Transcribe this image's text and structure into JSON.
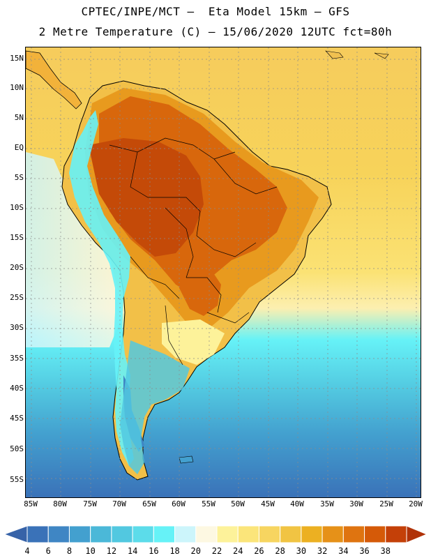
{
  "header": {
    "line1": "CPTEC/INPE/MCT –  Eta Model 15km – GFS",
    "line2": "2 Metre Temperature (C) – 15/06/2020 12UTC fct=80h"
  },
  "axes": {
    "lat_labels": [
      "15N",
      "10N",
      "5N",
      "EQ",
      "5S",
      "10S",
      "15S",
      "20S",
      "25S",
      "30S",
      "35S",
      "40S",
      "45S",
      "50S",
      "55S"
    ],
    "lon_labels": [
      "85W",
      "80W",
      "75W",
      "70W",
      "65W",
      "60W",
      "55W",
      "50W",
      "45W",
      "40W",
      "35W",
      "30W",
      "25W",
      "20W"
    ]
  },
  "colorbar": {
    "labels": [
      "4",
      "6",
      "8",
      "10",
      "12",
      "14",
      "16",
      "18",
      "20",
      "22",
      "24",
      "26",
      "28",
      "30",
      "32",
      "34",
      "36",
      "38"
    ],
    "colors": [
      "#3a72b8",
      "#3f86c4",
      "#43a0cf",
      "#4bb8d8",
      "#52c8e0",
      "#5cdcea",
      "#66f2f7",
      "#ccf5fb",
      "#fdf8e2",
      "#fdf29a",
      "#fbe57a",
      "#f7d560",
      "#f1c443",
      "#ecb022",
      "#e69118",
      "#df7410",
      "#d55a08",
      "#c44008"
    ],
    "under_color": "#3763a8",
    "over_color": "#b03208"
  },
  "map": {
    "region": "South America",
    "variable": "2 m temperature",
    "ocean_gradient": [
      {
        "lat_label": "15N",
        "color": "#f6cc5c"
      },
      {
        "lat_label": "5S",
        "color": "#f7d35a"
      },
      {
        "lat_label": "20S",
        "color": "#fbe274"
      },
      {
        "lat_label": "28S",
        "color": "#fcf0b8"
      },
      {
        "lat_label": "32S",
        "color": "#66f2f7"
      },
      {
        "lat_label": "40S",
        "color": "#52c8e0"
      },
      {
        "lat_label": "47S",
        "color": "#43a0cf"
      },
      {
        "lat_label": "55S",
        "color": "#3a72b8"
      }
    ]
  }
}
